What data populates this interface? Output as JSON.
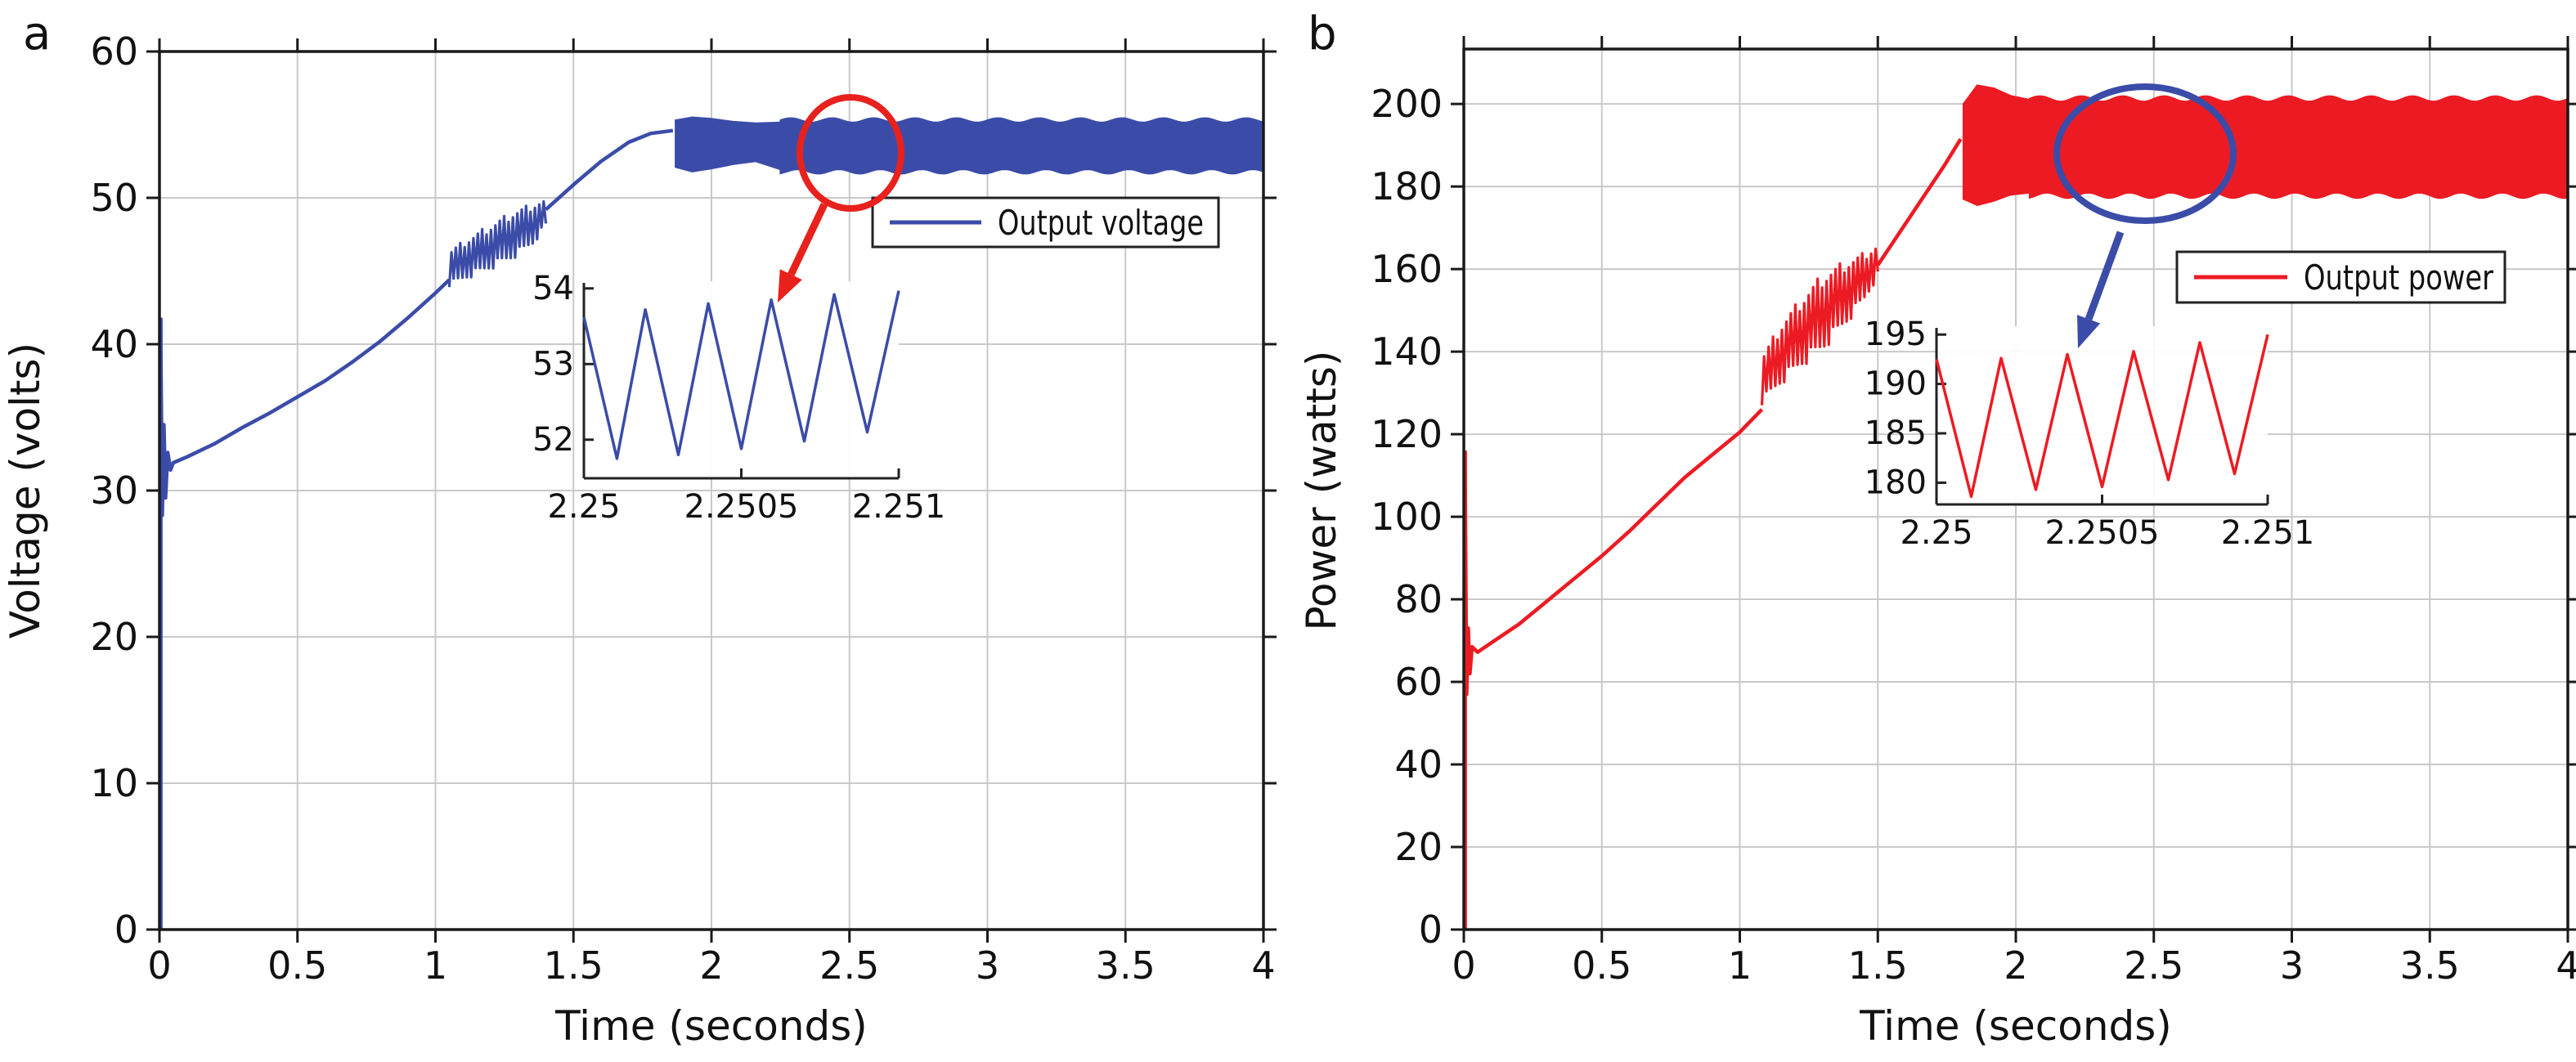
{
  "figure": {
    "background": "#ffffff",
    "grid_color": "#c9c9c9",
    "axis_color": "#1a1a1a"
  },
  "chart_data": [
    {
      "type": "line",
      "panel_label": "a",
      "series_name": "Output voltage",
      "color": "#3b4ca8",
      "legend": {
        "label": "Output voltage"
      },
      "x_axis": {
        "label": "Time (seconds)",
        "range": [
          0,
          4
        ],
        "ticks": [
          0,
          0.5,
          1,
          1.5,
          2,
          2.5,
          3,
          3.5,
          4
        ],
        "tick_labels": [
          "0",
          "0.5",
          "1",
          "1.5",
          "2",
          "2.5",
          "3",
          "3.5",
          "4"
        ]
      },
      "y_axis": {
        "label": "Voltage (volts)",
        "range": [
          0,
          60
        ],
        "ticks": [
          0,
          10,
          20,
          30,
          40,
          50,
          60
        ],
        "tick_labels": [
          "0",
          "10",
          "20",
          "30",
          "40",
          "50",
          "60"
        ]
      },
      "grid": true,
      "trace": {
        "segments": [
          {
            "mode": "spike",
            "t": 0.004,
            "from": 0,
            "to": 41.8
          },
          {
            "mode": "line",
            "points": [
              [
                0.004,
                41.8
              ],
              [
                0.01,
                28.3
              ],
              [
                0.016,
                34.5
              ],
              [
                0.022,
                29.5
              ],
              [
                0.03,
                32.6
              ],
              [
                0.04,
                31.4
              ],
              [
                0.05,
                31.9
              ],
              [
                0.1,
                32.3
              ],
              [
                0.2,
                33.2
              ],
              [
                0.3,
                34.3
              ],
              [
                0.4,
                35.3
              ],
              [
                0.5,
                36.4
              ],
              [
                0.6,
                37.5
              ],
              [
                0.7,
                38.8
              ],
              [
                0.8,
                40.2
              ],
              [
                0.9,
                41.8
              ],
              [
                1.0,
                43.5
              ],
              [
                1.05,
                44.4
              ]
            ]
          },
          {
            "mode": "noise",
            "points": [
              [
                1.05,
                43.9,
                46.4
              ],
              [
                1.12,
                44.5,
                47.3
              ],
              [
                1.2,
                45.1,
                48.2
              ],
              [
                1.28,
                45.8,
                49.1
              ],
              [
                1.35,
                46.7,
                49.6
              ],
              [
                1.4,
                48.0,
                49.9
              ]
            ]
          },
          {
            "mode": "line",
            "points": [
              [
                1.4,
                49.2
              ],
              [
                1.5,
                50.9
              ],
              [
                1.6,
                52.5
              ],
              [
                1.7,
                53.8
              ],
              [
                1.78,
                54.4
              ],
              [
                1.86,
                54.6
              ]
            ]
          },
          {
            "mode": "band",
            "points": [
              [
                1.87,
                52.1,
                55.3
              ],
              [
                1.93,
                51.8,
                55.5
              ],
              [
                2.0,
                52.0,
                55.4
              ],
              [
                2.08,
                52.3,
                55.2
              ],
              [
                2.16,
                52.5,
                55.1
              ],
              [
                2.25,
                51.95,
                55.15
              ]
            ]
          },
          {
            "mode": "ripple-band",
            "from": 2.25,
            "to": 4.0,
            "lo": 51.95,
            "hi": 55.15,
            "ripple": 0.3,
            "period": 0.15
          }
        ]
      },
      "inset": {
        "x_axis": {
          "range": [
            2.25,
            2.251
          ],
          "ticks": [
            2.25,
            2.2505,
            2.251
          ],
          "tick_labels": [
            "2.25",
            "2.2505",
            "2.251"
          ]
        },
        "y_axis": {
          "range": [
            51.49,
            54.03
          ],
          "ticks": [
            52,
            53,
            54
          ],
          "tick_labels": [
            "52",
            "53",
            "54"
          ]
        },
        "points": [
          [
            2.25,
            53.62
          ],
          [
            2.250105,
            51.75
          ],
          [
            2.250195,
            53.72
          ],
          [
            2.2503,
            51.8
          ],
          [
            2.250395,
            53.8
          ],
          [
            2.2505,
            51.88
          ],
          [
            2.250595,
            53.85
          ],
          [
            2.2507,
            51.98
          ],
          [
            2.250795,
            53.92
          ],
          [
            2.2509,
            52.1
          ],
          [
            2.251,
            53.97
          ]
        ]
      },
      "annotation": {
        "description": "circle on steady-state ripple with arrow to inset",
        "color": "#e8211d"
      }
    },
    {
      "type": "line",
      "panel_label": "b",
      "series_name": "Output power",
      "color": "#ec1b23",
      "legend": {
        "label": "Output power"
      },
      "x_axis": {
        "label": "Time (seconds)",
        "range": [
          0,
          4
        ],
        "ticks": [
          0,
          0.5,
          1,
          1.5,
          2,
          2.5,
          3,
          3.5,
          4
        ],
        "tick_labels": [
          "0",
          "0.5",
          "1",
          "1.5",
          "2",
          "2.5",
          "3",
          "3.5",
          "4"
        ]
      },
      "y_axis": {
        "label": "Power (watts)",
        "range": [
          0,
          213.3
        ],
        "ticks": [
          0,
          20,
          40,
          60,
          80,
          100,
          120,
          140,
          160,
          180,
          200
        ],
        "tick_labels": [
          "0",
          "20",
          "40",
          "60",
          "80",
          "100",
          "120",
          "140",
          "160",
          "180",
          "200"
        ]
      },
      "grid": true,
      "trace": {
        "segments": [
          {
            "mode": "spike",
            "t": 0.004,
            "from": 0,
            "to": 116
          },
          {
            "mode": "line",
            "points": [
              [
                0.004,
                116
              ],
              [
                0.01,
                57
              ],
              [
                0.016,
                73
              ],
              [
                0.022,
                62
              ],
              [
                0.03,
                68.5
              ],
              [
                0.05,
                67.2
              ],
              [
                0.1,
                69.5
              ],
              [
                0.2,
                74
              ],
              [
                0.3,
                79.5
              ],
              [
                0.4,
                85
              ],
              [
                0.5,
                90.5
              ],
              [
                0.6,
                96.5
              ],
              [
                0.7,
                103
              ],
              [
                0.8,
                109.5
              ],
              [
                0.9,
                115
              ],
              [
                1.0,
                120.5
              ],
              [
                1.08,
                126
              ]
            ]
          },
          {
            "mode": "noise",
            "points": [
              [
                1.08,
                127,
                139
              ],
              [
                1.15,
                132,
                147
              ],
              [
                1.22,
                136,
                153
              ],
              [
                1.3,
                140,
                159
              ],
              [
                1.38,
                146,
                162
              ],
              [
                1.45,
                152,
                164
              ],
              [
                1.5,
                158,
                166
              ]
            ]
          },
          {
            "mode": "line",
            "points": [
              [
                1.5,
                161
              ],
              [
                1.58,
                169
              ],
              [
                1.66,
                177
              ],
              [
                1.74,
                185
              ],
              [
                1.8,
                191.5
              ]
            ]
          },
          {
            "mode": "band",
            "points": [
              [
                1.81,
                177,
                200
              ],
              [
                1.86,
                175.5,
                204.5
              ],
              [
                1.92,
                176.5,
                203.8
              ],
              [
                1.98,
                178,
                202
              ],
              [
                2.05,
                178.5,
                201
              ]
            ]
          },
          {
            "mode": "ripple-band",
            "from": 2.05,
            "to": 4.0,
            "lo": 178.5,
            "hi": 200.6,
            "ripple": 1.3,
            "period": 0.15
          }
        ]
      },
      "inset": {
        "x_axis": {
          "range": [
            2.25,
            2.251
          ],
          "ticks": [
            2.25,
            2.2505,
            2.251
          ],
          "tick_labels": [
            "2.25",
            "2.2505",
            "2.251"
          ]
        },
        "y_axis": {
          "range": [
            177.8,
            195.35
          ],
          "ticks": [
            180,
            185,
            190,
            195
          ],
          "tick_labels": [
            "180",
            "185",
            "190",
            "195"
          ]
        },
        "points": [
          [
            2.25,
            192.5
          ],
          [
            2.250105,
            178.6
          ],
          [
            2.250195,
            192.6
          ],
          [
            2.2503,
            179.3
          ],
          [
            2.250395,
            193.0
          ],
          [
            2.2505,
            179.6
          ],
          [
            2.250595,
            193.3
          ],
          [
            2.2507,
            180.3
          ],
          [
            2.250795,
            194.2
          ],
          [
            2.2509,
            180.9
          ],
          [
            2.251,
            195.0
          ]
        ]
      },
      "annotation": {
        "description": "ellipse on steady-state ripple with arrow to inset",
        "color": "#3b4ca8"
      }
    }
  ]
}
